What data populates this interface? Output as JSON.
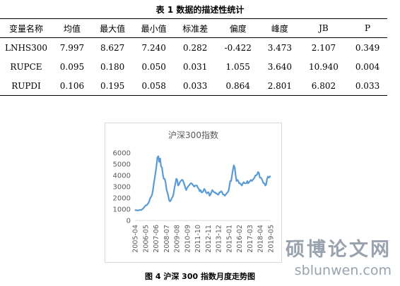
{
  "table": {
    "title": "表 1 数据的描述性统计",
    "headers": [
      "变量名称",
      "均值",
      "最大值",
      "最小值",
      "标准差",
      "偏度",
      "峰度",
      "JB",
      "P"
    ],
    "rows": [
      [
        "LNHS300",
        "7.997",
        "8.627",
        "7.240",
        "0.282",
        "-0.422",
        "3.473",
        "2.107",
        "0.349"
      ],
      [
        "RUPCE",
        "0.095",
        "0.180",
        "0.050",
        "0.031",
        "1.055",
        "3.640",
        "10.940",
        "0.004"
      ],
      [
        "RUPDI",
        "0.106",
        "0.195",
        "0.058",
        "0.033",
        "0.864",
        "2.801",
        "6.802",
        "0.033"
      ]
    ]
  },
  "chart_data": {
    "type": "line",
    "title": "沪深300指数",
    "xlabel": "",
    "ylabel": "",
    "ylim": [
      0,
      6000
    ],
    "yticks": [
      0,
      1000,
      2000,
      3000,
      4000,
      5000,
      6000
    ],
    "x_tick_labels": [
      "2005-04",
      "2006-05",
      "2007-06",
      "2008-07",
      "2009-08",
      "2010-09",
      "2011-10",
      "2012-11",
      "2013-12",
      "2015-01",
      "2016-02",
      "2017-03",
      "2018-04",
      "2019-05"
    ],
    "grid": false,
    "legend": "none",
    "line_color": "#5b9bd5",
    "series": [
      {
        "values": [
          950,
          900,
          920,
          880,
          900,
          930,
          940,
          920,
          1000,
          1050,
          1150,
          1250,
          1350,
          1350,
          1450,
          1550,
          1750,
          2000,
          2100,
          2300,
          2700,
          3300,
          3800,
          4300,
          4900,
          5600,
          5700,
          5200,
          5500,
          4800,
          4700,
          4100,
          3700,
          3700,
          3400,
          2800,
          2500,
          2200,
          1800,
          1700,
          1800,
          2000,
          2100,
          2400,
          2900,
          3300,
          3700,
          3600,
          3100,
          3200,
          3400,
          3500,
          3600,
          3600,
          3400,
          3200,
          2900,
          2700,
          2900,
          3000,
          3100,
          3200,
          3300,
          3300,
          3200,
          3100,
          3000,
          3100,
          3100,
          3100,
          2900,
          2800,
          2600,
          2700,
          2500,
          2500,
          2600,
          2800,
          2700,
          2500,
          2400,
          2500,
          2500,
          2200,
          2300,
          2500,
          2700,
          2600,
          2500,
          2500,
          2400,
          2400,
          2300,
          2300,
          2500,
          2500,
          2600,
          2500,
          2300,
          2300,
          2200,
          2300,
          2400,
          2500,
          2600,
          3000,
          3500,
          3500,
          4000,
          4500,
          4900,
          4700,
          4000,
          3500,
          3600,
          3500,
          3300,
          3300,
          3200,
          3100,
          3300,
          3400,
          3300,
          3300,
          3300,
          3500,
          3300,
          3400,
          3500,
          3600,
          3500,
          3600,
          3700,
          3800,
          4000,
          4000,
          4100,
          4300,
          4200,
          3800,
          3800,
          3700,
          3500,
          3300,
          3300,
          3100,
          3200,
          3700,
          3900,
          3800,
          3900,
          3900
        ]
      }
    ]
  },
  "figure": {
    "caption": "图 4 沪深 300 指数月度走势图"
  },
  "watermark": {
    "cn": "硕博论文网",
    "url": "sblunwen.com"
  }
}
